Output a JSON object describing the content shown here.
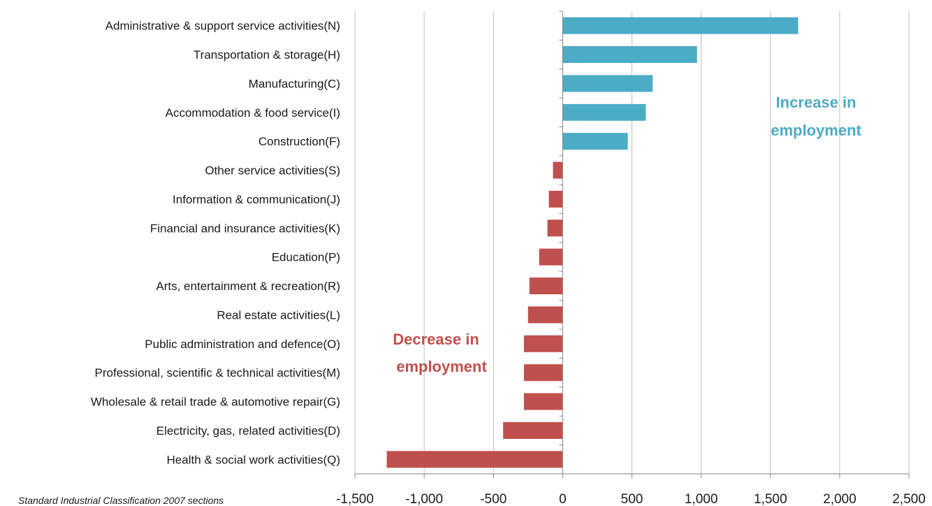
{
  "chart_data": {
    "type": "bar",
    "orientation": "horizontal",
    "categories": [
      "Administrative & support service activities(N)",
      "Transportation & storage(H)",
      "Manufacturing(C)",
      "Accommodation & food service(I)",
      "Construction(F)",
      "Other service activities(S)",
      "Information & communication(J)",
      "Financial and insurance activities(K)",
      "Education(P)",
      "Arts, entertainment & recreation(R)",
      "Real estate activities(L)",
      "Public administration and defence(O)",
      "Professional, scientific & technical activities(M)",
      "Wholesale & retail trade & automotive repair(G)",
      "Electricity, gas, related activities(D)",
      "Health & social work activities(Q)"
    ],
    "values": [
      1700,
      970,
      650,
      600,
      470,
      -70,
      -100,
      -110,
      -170,
      -240,
      -250,
      -280,
      -280,
      -280,
      -430,
      -1270
    ],
    "xlim": [
      -1500,
      2500
    ],
    "xticks": [
      -1500,
      -1000,
      -500,
      0,
      500,
      1000,
      1500,
      2000,
      2500
    ],
    "xtick_labels": [
      "-1,500",
      "-1,000",
      "-500",
      "0",
      "500",
      "1,000",
      "1,500",
      "2,000",
      "2,500"
    ],
    "grid": "vertical",
    "positive_color": "#4bacc6",
    "negative_color": "#c0504d",
    "annotations": [
      {
        "lines": [
          "Increase in",
          "employment"
        ],
        "color": "#4bacc6"
      },
      {
        "lines": [
          "Decrease in",
          "employment"
        ],
        "color": "#c0504d"
      }
    ],
    "caption": "Standard Industrial Classification 2007 sections"
  }
}
